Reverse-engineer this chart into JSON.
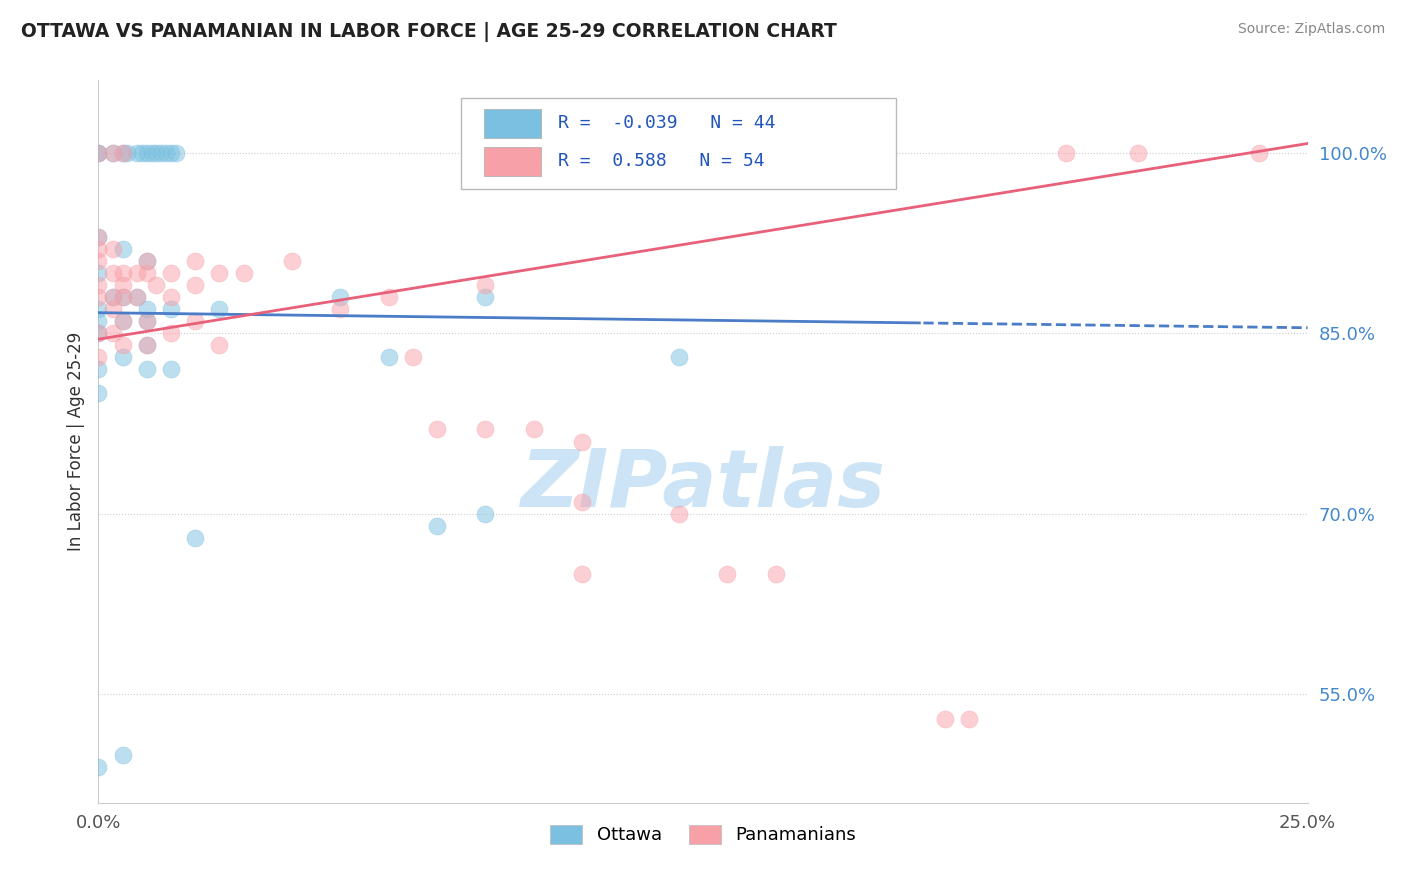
{
  "title": "OTTAWA VS PANAMANIAN IN LABOR FORCE | AGE 25-29 CORRELATION CHART",
  "source_text": "Source: ZipAtlas.com",
  "ylabel": "In Labor Force | Age 25-29",
  "xlim": [
    0.0,
    0.25
  ],
  "ylim": [
    0.46,
    1.06
  ],
  "xtick_positions": [
    0.0,
    0.25
  ],
  "xtick_labels": [
    "0.0%",
    "25.0%"
  ],
  "ytick_vals": [
    0.55,
    0.7,
    0.85,
    1.0
  ],
  "ytick_labels": [
    "55.0%",
    "70.0%",
    "85.0%",
    "100.0%"
  ],
  "ottawa_R": -0.039,
  "ottawa_N": 44,
  "panama_R": 0.588,
  "panama_N": 54,
  "ottawa_color": "#7bc0e0",
  "panama_color": "#f8a0a8",
  "ottawa_line_color": "#4a7cc7",
  "panama_line_color": "#e8607a",
  "watermark": "ZIPatlas",
  "watermark_color": "#cce4f5",
  "background_color": "#ffffff",
  "title_color": "#222222",
  "legend_R_color": "#2255bb",
  "ottawa_scatter": [
    [
      0.0,
      1.0
    ],
    [
      0.0,
      1.0
    ],
    [
      0.003,
      1.0
    ],
    [
      0.005,
      1.0
    ],
    [
      0.006,
      1.0
    ],
    [
      0.008,
      1.0
    ],
    [
      0.009,
      1.0
    ],
    [
      0.01,
      1.0
    ],
    [
      0.011,
      1.0
    ],
    [
      0.012,
      1.0
    ],
    [
      0.013,
      1.0
    ],
    [
      0.014,
      1.0
    ],
    [
      0.015,
      1.0
    ],
    [
      0.016,
      1.0
    ],
    [
      0.0,
      0.93
    ],
    [
      0.0,
      0.9
    ],
    [
      0.005,
      0.92
    ],
    [
      0.01,
      0.91
    ],
    [
      0.0,
      0.87
    ],
    [
      0.0,
      0.86
    ],
    [
      0.0,
      0.85
    ],
    [
      0.003,
      0.88
    ],
    [
      0.005,
      0.88
    ],
    [
      0.005,
      0.86
    ],
    [
      0.008,
      0.88
    ],
    [
      0.01,
      0.87
    ],
    [
      0.01,
      0.86
    ],
    [
      0.01,
      0.84
    ],
    [
      0.015,
      0.87
    ],
    [
      0.0,
      0.82
    ],
    [
      0.0,
      0.8
    ],
    [
      0.005,
      0.83
    ],
    [
      0.01,
      0.82
    ],
    [
      0.015,
      0.82
    ],
    [
      0.025,
      0.87
    ],
    [
      0.05,
      0.88
    ],
    [
      0.06,
      0.83
    ],
    [
      0.08,
      0.88
    ],
    [
      0.12,
      0.83
    ],
    [
      0.07,
      0.69
    ],
    [
      0.08,
      0.7
    ],
    [
      0.02,
      0.68
    ],
    [
      0.005,
      0.5
    ],
    [
      0.0,
      0.49
    ]
  ],
  "panama_scatter": [
    [
      0.0,
      1.0
    ],
    [
      0.003,
      1.0
    ],
    [
      0.005,
      1.0
    ],
    [
      0.0,
      0.93
    ],
    [
      0.0,
      0.92
    ],
    [
      0.0,
      0.91
    ],
    [
      0.003,
      0.92
    ],
    [
      0.0,
      0.89
    ],
    [
      0.0,
      0.88
    ],
    [
      0.003,
      0.9
    ],
    [
      0.003,
      0.88
    ],
    [
      0.003,
      0.87
    ],
    [
      0.005,
      0.9
    ],
    [
      0.005,
      0.89
    ],
    [
      0.005,
      0.88
    ],
    [
      0.008,
      0.9
    ],
    [
      0.008,
      0.88
    ],
    [
      0.01,
      0.91
    ],
    [
      0.01,
      0.9
    ],
    [
      0.012,
      0.89
    ],
    [
      0.015,
      0.9
    ],
    [
      0.015,
      0.88
    ],
    [
      0.02,
      0.91
    ],
    [
      0.02,
      0.89
    ],
    [
      0.025,
      0.9
    ],
    [
      0.03,
      0.9
    ],
    [
      0.04,
      0.91
    ],
    [
      0.0,
      0.85
    ],
    [
      0.0,
      0.83
    ],
    [
      0.003,
      0.85
    ],
    [
      0.005,
      0.86
    ],
    [
      0.005,
      0.84
    ],
    [
      0.01,
      0.86
    ],
    [
      0.01,
      0.84
    ],
    [
      0.015,
      0.85
    ],
    [
      0.02,
      0.86
    ],
    [
      0.025,
      0.84
    ],
    [
      0.05,
      0.87
    ],
    [
      0.06,
      0.88
    ],
    [
      0.08,
      0.89
    ],
    [
      0.065,
      0.83
    ],
    [
      0.07,
      0.77
    ],
    [
      0.08,
      0.77
    ],
    [
      0.09,
      0.77
    ],
    [
      0.1,
      0.76
    ],
    [
      0.1,
      0.71
    ],
    [
      0.1,
      0.65
    ],
    [
      0.12,
      0.7
    ],
    [
      0.13,
      0.65
    ],
    [
      0.14,
      0.65
    ],
    [
      0.175,
      0.53
    ],
    [
      0.18,
      0.53
    ],
    [
      0.2,
      1.0
    ],
    [
      0.215,
      1.0
    ],
    [
      0.24,
      1.0
    ]
  ]
}
